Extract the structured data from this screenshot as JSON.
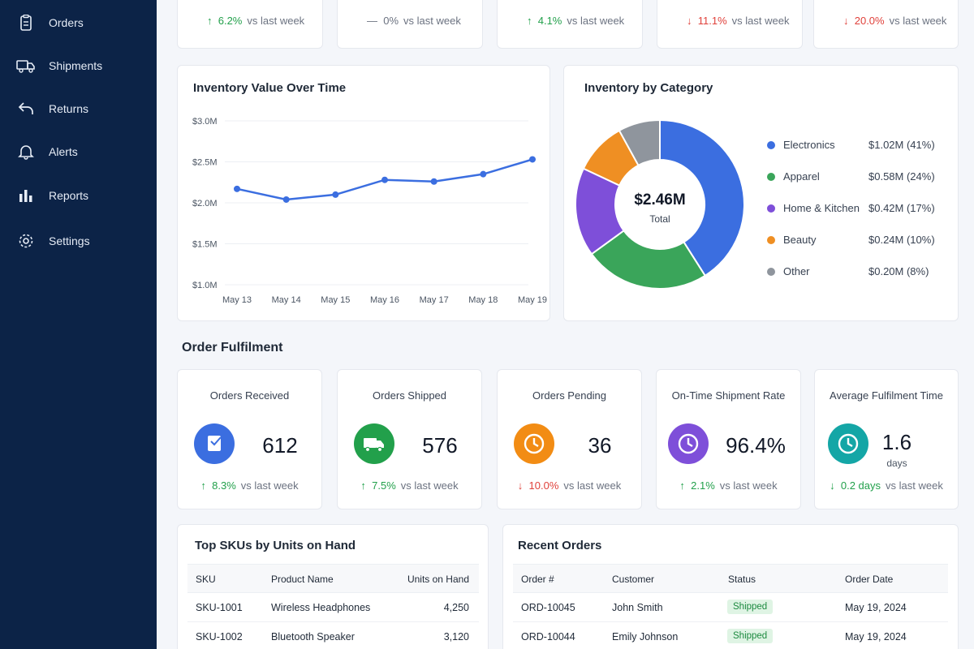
{
  "sidebar": {
    "items": [
      {
        "label": "Orders",
        "icon": "clipboard-icon"
      },
      {
        "label": "Shipments",
        "icon": "truck-icon"
      },
      {
        "label": "Returns",
        "icon": "return-arrow-icon"
      },
      {
        "label": "Alerts",
        "icon": "bell-icon"
      },
      {
        "label": "Reports",
        "icon": "bar-chart-icon"
      },
      {
        "label": "Settings",
        "icon": "gear-icon"
      }
    ]
  },
  "top_kpis": [
    {
      "delta": "6.2%",
      "direction": "up",
      "vs": "vs last week",
      "color": "#22a04b"
    },
    {
      "delta": "0%",
      "direction": "flat",
      "vs": "vs last week",
      "color": "#6b7280"
    },
    {
      "delta": "4.1%",
      "direction": "up",
      "vs": "vs last week",
      "color": "#22a04b"
    },
    {
      "delta": "11.1%",
      "direction": "down",
      "vs": "vs last week",
      "color": "#e0413b"
    },
    {
      "delta": "20.0%",
      "direction": "down",
      "vs": "vs last week",
      "color": "#e0413b"
    }
  ],
  "inventory_value": {
    "title": "Inventory Value Over Time"
  },
  "inventory_category": {
    "title": "Inventory by Category",
    "total_value": "$2.46M",
    "total_label": "Total"
  },
  "chart_data": [
    {
      "type": "line",
      "title": "Inventory Value Over Time",
      "xlabel": "",
      "ylabel": "",
      "categories": [
        "May 13",
        "May 14",
        "May 15",
        "May 16",
        "May 17",
        "May 18",
        "May 19"
      ],
      "values": [
        2.17,
        2.04,
        2.1,
        2.28,
        2.26,
        2.35,
        2.53
      ],
      "ylim": [
        1.0,
        3.0
      ],
      "yticks": [
        1.0,
        1.5,
        2.0,
        2.5,
        3.0
      ],
      "ytick_labels": [
        "$1.0M",
        "$1.5M",
        "$2.0M",
        "$2.5M",
        "$3.0M"
      ],
      "grid": true,
      "color": "#3b6ee0"
    },
    {
      "type": "pie",
      "title": "Inventory by Category",
      "slices": [
        {
          "name": "Electronics",
          "value": 41,
          "amount": "$1.02M (41%)",
          "color": "#3b6ee0"
        },
        {
          "name": "Apparel",
          "value": 24,
          "amount": "$0.58M (24%)",
          "color": "#3aa55a"
        },
        {
          "name": "Home & Kitchen",
          "value": 17,
          "amount": "$0.42M (17%)",
          "color": "#7e4fd9"
        },
        {
          "name": "Beauty",
          "value": 10,
          "amount": "$0.24M (10%)",
          "color": "#ef8f23"
        },
        {
          "name": "Other",
          "value": 8,
          "amount": "$0.20M (8%)",
          "color": "#8f959d"
        }
      ],
      "legend": "right"
    }
  ],
  "fulfilment": {
    "title": "Order Fulfilment",
    "cards": [
      {
        "title": "Orders Received",
        "value": "612",
        "unit": "",
        "delta": "8.3%",
        "direction": "up",
        "vs": "vs last week",
        "icon": "clipboard-icon",
        "color": "#3b6ee0"
      },
      {
        "title": "Orders Shipped",
        "value": "576",
        "unit": "",
        "delta": "7.5%",
        "direction": "up",
        "vs": "vs last week",
        "icon": "truck-icon",
        "color": "#22a04b"
      },
      {
        "title": "Orders Pending",
        "value": "36",
        "unit": "",
        "delta": "10.0%",
        "direction": "down",
        "vs": "vs last week",
        "icon": "clock-icon",
        "color": "#f28c14"
      },
      {
        "title": "On-Time Shipment Rate",
        "value": "96.4%",
        "unit": "",
        "delta": "2.1%",
        "direction": "up",
        "vs": "vs last week",
        "icon": "clock-icon",
        "color": "#7e4fd9"
      },
      {
        "title": "Average Fulfilment Time",
        "value": "1.6",
        "unit": "days",
        "delta": "0.2 days",
        "direction": "down-good",
        "vs": "vs last week",
        "icon": "clock-icon",
        "color": "#14a6a6"
      }
    ]
  },
  "top_skus": {
    "title": "Top SKUs by Units on Hand",
    "headers": [
      "SKU",
      "Product Name",
      "Units on Hand"
    ],
    "rows": [
      [
        "SKU-1001",
        "Wireless Headphones",
        "4,250"
      ],
      [
        "SKU-1002",
        "Bluetooth Speaker",
        "3,120"
      ]
    ]
  },
  "recent_orders": {
    "title": "Recent Orders",
    "headers": [
      "Order #",
      "Customer",
      "Status",
      "Order Date"
    ],
    "rows": [
      [
        "ORD-10045",
        "John Smith",
        "Shipped",
        "May 19, 2024"
      ],
      [
        "ORD-10044",
        "Emily Johnson",
        "Shipped",
        "May 19, 2024"
      ]
    ]
  }
}
